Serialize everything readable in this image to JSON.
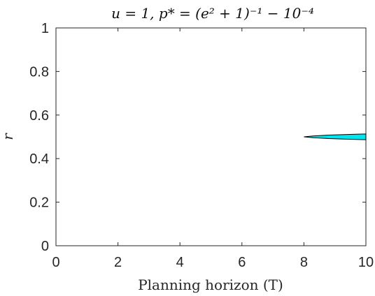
{
  "chart_data": {
    "type": "area",
    "title": "u = 1, p* = (e² + 1)⁻¹ − 10⁻⁴",
    "xlabel": "Planning horizon (T)",
    "ylabel": "r",
    "xlim": [
      0,
      10
    ],
    "ylim": [
      0,
      1
    ],
    "x_ticks": [
      "0",
      "2",
      "4",
      "6",
      "8",
      "10"
    ],
    "y_ticks": [
      "0",
      "0.2",
      "0.4",
      "0.6",
      "0.8",
      "1"
    ],
    "grid": false,
    "series": [
      {
        "color": "#00e5ee",
        "edge_color": "#000000",
        "region_upper": [
          {
            "x": 8.0,
            "y": 0.5
          },
          {
            "x": 8.3,
            "y": 0.504
          },
          {
            "x": 8.8,
            "y": 0.508
          },
          {
            "x": 9.4,
            "y": 0.511
          },
          {
            "x": 10.0,
            "y": 0.513
          }
        ],
        "region_lower": [
          {
            "x": 8.0,
            "y": 0.5
          },
          {
            "x": 8.3,
            "y": 0.496
          },
          {
            "x": 8.8,
            "y": 0.492
          },
          {
            "x": 9.4,
            "y": 0.489
          },
          {
            "x": 10.0,
            "y": 0.487
          }
        ]
      }
    ]
  }
}
